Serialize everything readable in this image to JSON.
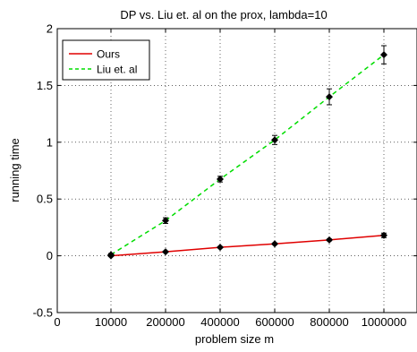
{
  "chart_data": {
    "type": "line",
    "title": "DP vs. Liu et. al on the prox, lambda=10",
    "xlabel": "problem size m",
    "ylabel": "running time",
    "x_tick_labels": [
      "0",
      "10000",
      "200000",
      "400000",
      "600000",
      "800000",
      "1000000"
    ],
    "y_tick_labels": [
      "-0.5",
      "0",
      "0.5",
      "1",
      "1.5",
      "2"
    ],
    "y_ticks": [
      -0.5,
      0,
      0.5,
      1,
      1.5,
      2
    ],
    "ylim": [
      -0.5,
      2
    ],
    "categories": [
      "10000",
      "200000",
      "400000",
      "600000",
      "800000",
      "1000000"
    ],
    "grid": true,
    "legend_position": "top-left",
    "series": [
      {
        "name": "Ours",
        "color": "#e00000",
        "line_style": "solid",
        "values": [
          0.0,
          0.035,
          0.075,
          0.105,
          0.14,
          0.18
        ],
        "errors": [
          0.005,
          0.005,
          0.006,
          0.007,
          0.008,
          0.02
        ]
      },
      {
        "name": "Liu et. al",
        "color": "#00dd00",
        "line_style": "dashed",
        "values": [
          0.01,
          0.31,
          0.675,
          1.02,
          1.4,
          1.77
        ],
        "errors": [
          0.01,
          0.025,
          0.025,
          0.04,
          0.07,
          0.08
        ]
      }
    ]
  }
}
